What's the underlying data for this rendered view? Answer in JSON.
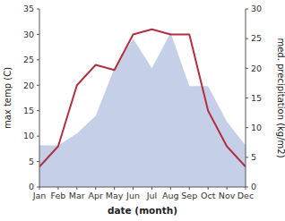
{
  "chart_data": {
    "type": "line",
    "x_label": "date (month)",
    "y_label": "max temp (C)",
    "y2_label": "med. precipitation (kg/m2)",
    "categories": [
      "Jan",
      "Feb",
      "Mar",
      "Apr",
      "May",
      "Jun",
      "Jul",
      "Aug",
      "Sep",
      "Oct",
      "Nov",
      "Dec"
    ],
    "series": [
      {
        "type": "area",
        "axis": "y2",
        "color": "#c5cfe8",
        "values": [
          7,
          7,
          9,
          12,
          20,
          25,
          20,
          26,
          17,
          17,
          11,
          7
        ]
      },
      {
        "type": "line",
        "color": "#b03040",
        "values": [
          4,
          8,
          20,
          24,
          23,
          30,
          31,
          30,
          30,
          15,
          8,
          4
        ]
      }
    ],
    "ylim": [
      0,
      35
    ],
    "yticks": [
      0,
      5,
      10,
      15,
      20,
      25,
      30,
      35
    ],
    "y2lim": [
      0,
      30
    ],
    "y2ticks": [
      0,
      5,
      10,
      15,
      20,
      25,
      30
    ],
    "grid": false
  }
}
